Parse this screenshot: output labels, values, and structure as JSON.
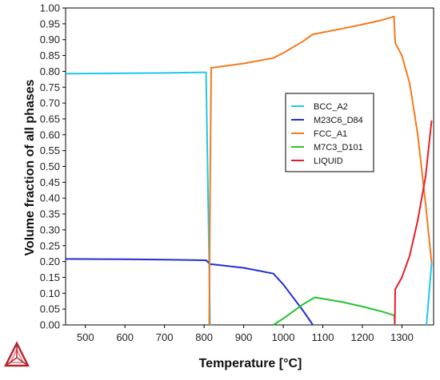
{
  "chart_data": {
    "type": "line",
    "title": "",
    "xlabel": "Temperature [°C]",
    "ylabel": "Volume fraction of all phases",
    "xlim": [
      450,
      1380
    ],
    "ylim": [
      0,
      1.0
    ],
    "xticks": [
      500,
      600,
      700,
      800,
      900,
      1000,
      1100,
      1200,
      1300
    ],
    "yticks": [
      0.0,
      0.05,
      0.1,
      0.15,
      0.2,
      0.25,
      0.3,
      0.35,
      0.4,
      0.45,
      0.5,
      0.55,
      0.6,
      0.65,
      0.7,
      0.75,
      0.8,
      0.85,
      0.9,
      0.95,
      1.0
    ],
    "grid": false,
    "legend_position": "center-right",
    "series": [
      {
        "name": "BCC_A2",
        "color": "#1ec8ea",
        "points": [
          [
            450,
            0.793
          ],
          [
            600,
            0.794
          ],
          [
            700,
            0.795
          ],
          [
            805,
            0.797
          ],
          [
            810,
            0.4
          ],
          [
            813,
            0.2
          ],
          [
            815,
            0.0
          ]
        ]
      },
      {
        "name": "M23C6_D84",
        "color": "#1f2fd0",
        "points": [
          [
            450,
            0.208
          ],
          [
            600,
            0.207
          ],
          [
            700,
            0.206
          ],
          [
            805,
            0.204
          ],
          [
            815,
            0.192
          ],
          [
            900,
            0.18
          ],
          [
            975,
            0.162
          ],
          [
            1000,
            0.128
          ],
          [
            1050,
            0.045
          ],
          [
            1075,
            0.0
          ]
        ]
      },
      {
        "name": "FCC_A1",
        "color": "#f27a1e",
        "points": [
          [
            813,
            0.0
          ],
          [
            815,
            0.4
          ],
          [
            818,
            0.811
          ],
          [
            900,
            0.825
          ],
          [
            975,
            0.842
          ],
          [
            1000,
            0.858
          ],
          [
            1050,
            0.895
          ],
          [
            1075,
            0.917
          ],
          [
            1150,
            0.935
          ],
          [
            1200,
            0.948
          ],
          [
            1250,
            0.962
          ],
          [
            1280,
            0.973
          ],
          [
            1283,
            0.89
          ],
          [
            1300,
            0.85
          ],
          [
            1320,
            0.76
          ],
          [
            1340,
            0.6
          ],
          [
            1360,
            0.38
          ],
          [
            1375,
            0.195
          ]
        ]
      },
      {
        "name": "M7C3_D101",
        "color": "#22c42e",
        "points": [
          [
            975,
            0.0
          ],
          [
            1000,
            0.02
          ],
          [
            1050,
            0.065
          ],
          [
            1080,
            0.087
          ],
          [
            1150,
            0.072
          ],
          [
            1200,
            0.058
          ],
          [
            1250,
            0.042
          ],
          [
            1281,
            0.03
          ],
          [
            1282,
            0.0
          ]
        ]
      },
      {
        "name": "LIQUID",
        "color": "#e61e2b",
        "points": [
          [
            1282,
            0.0
          ],
          [
            1283,
            0.112
          ],
          [
            1300,
            0.15
          ],
          [
            1320,
            0.22
          ],
          [
            1340,
            0.33
          ],
          [
            1360,
            0.47
          ],
          [
            1375,
            0.645
          ]
        ]
      },
      {
        "name": "",
        "color": "#1ec8ea",
        "points": [
          [
            1362,
            0.0
          ],
          [
            1375,
            0.195
          ]
        ]
      }
    ]
  },
  "logo": {
    "name": "thermo-calc-logo",
    "colors": [
      "#b5252e",
      "#e07a80"
    ]
  }
}
